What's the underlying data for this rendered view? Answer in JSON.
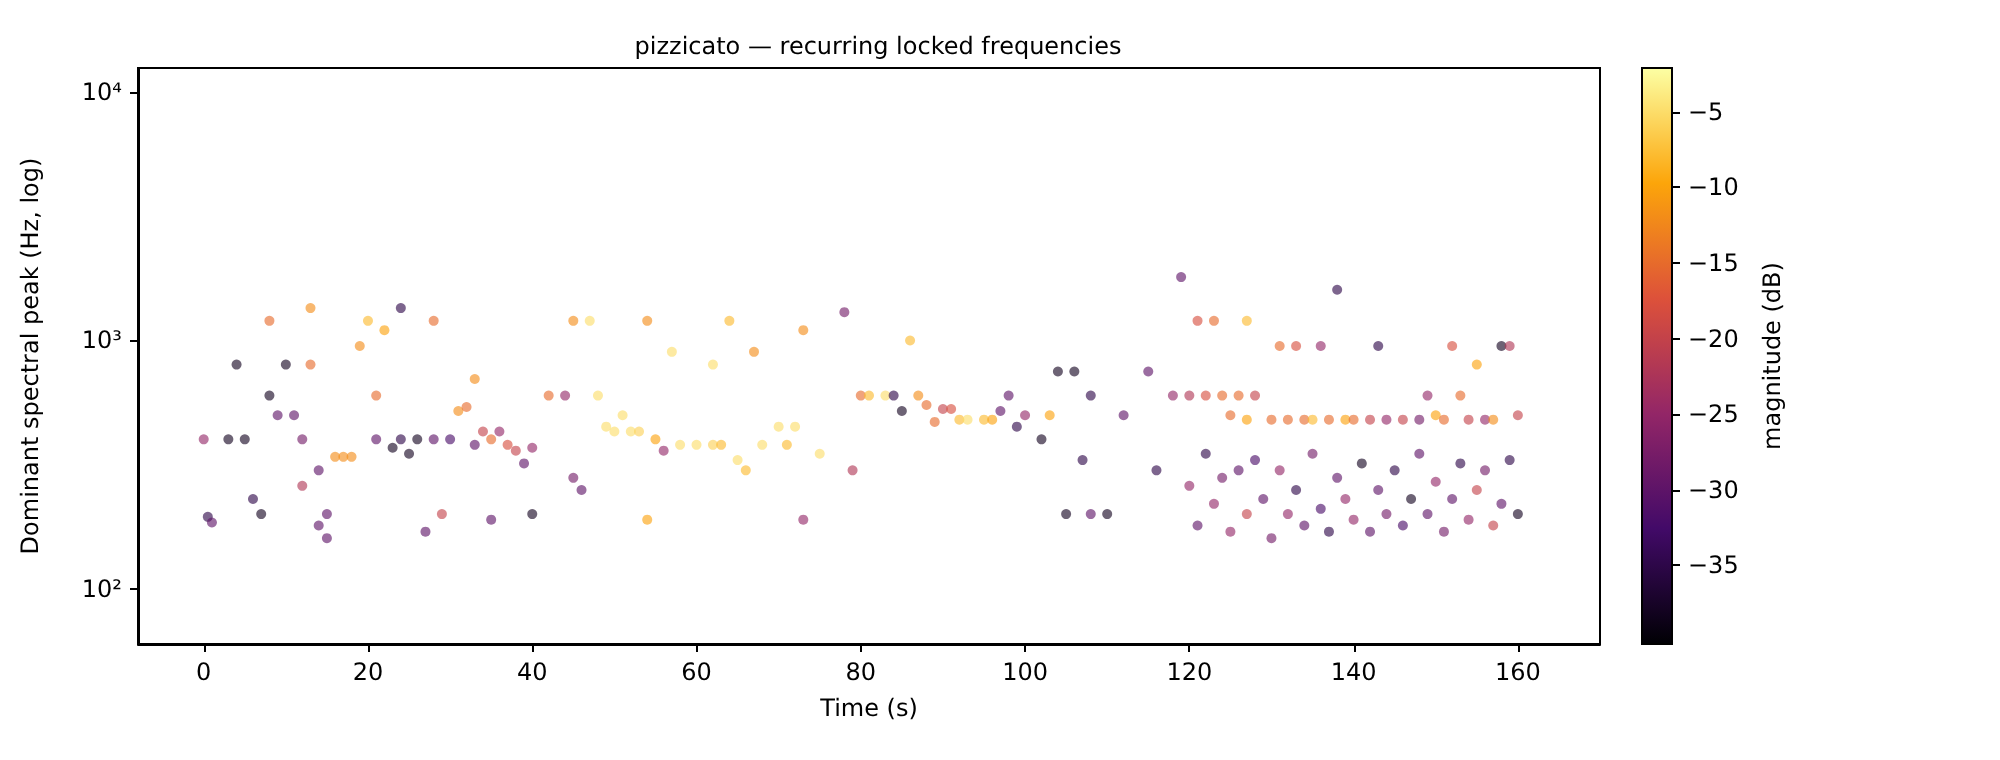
{
  "chart_data": {
    "type": "scatter",
    "title": "pizzicato — recurring locked frequencies",
    "xlabel": "Time (s)",
    "ylabel": "Dominant spectral peak (Hz, log)",
    "clabel": "magnitude (dB)",
    "xlim": [
      -8,
      170
    ],
    "xticks": [
      0,
      20,
      40,
      60,
      80,
      100,
      120,
      140,
      160
    ],
    "ylim": [
      60,
      12500
    ],
    "yticks": [
      {
        "value": 100,
        "label": "10²"
      },
      {
        "value": 1000,
        "label": "10³"
      },
      {
        "value": 10000,
        "label": "10⁴"
      }
    ],
    "log": "y",
    "marker": "circle",
    "clim": [
      -40.2,
      -2.1
    ],
    "cticks": [
      {
        "value": -35,
        "label": "−35"
      },
      {
        "value": -30,
        "label": "−30"
      },
      {
        "value": -25,
        "label": "−25"
      },
      {
        "value": -20,
        "label": "−20"
      },
      {
        "value": -15,
        "label": "−15"
      },
      {
        "value": -10,
        "label": "−10"
      },
      {
        "value": -5,
        "label": "−5"
      }
    ],
    "x": [
      0,
      0.5,
      1,
      3,
      4,
      5,
      6,
      7,
      8,
      8,
      9,
      10,
      11,
      12,
      12,
      13,
      13,
      14,
      14,
      15,
      15,
      16,
      17,
      18,
      19,
      20,
      21,
      21,
      22,
      23,
      24,
      24,
      25,
      26,
      27,
      28,
      28,
      29,
      30,
      31,
      32,
      33,
      33,
      34,
      35,
      35,
      36,
      37,
      38,
      39,
      40,
      40,
      42,
      44,
      45,
      45,
      46,
      47,
      48,
      49,
      50,
      51,
      52,
      53,
      54,
      55,
      54,
      56,
      57,
      58,
      60,
      62,
      63,
      62,
      64,
      65,
      66,
      67,
      68,
      70,
      71,
      72,
      73,
      73,
      75,
      78,
      79,
      80,
      81,
      83,
      84,
      85,
      86,
      87,
      88,
      89,
      90,
      91,
      92,
      93,
      95,
      96,
      97,
      98,
      99,
      100,
      102,
      103,
      104,
      105,
      106,
      107,
      108,
      108,
      110,
      112,
      115,
      116,
      118,
      119,
      120,
      121,
      122,
      123,
      124,
      125,
      126,
      127,
      127,
      128,
      130,
      131,
      132,
      133,
      134,
      135,
      136,
      137,
      138,
      139,
      140,
      142,
      143,
      144,
      146,
      148,
      149,
      150,
      151,
      152,
      153,
      154,
      155,
      156,
      157,
      158,
      159,
      160,
      120,
      121,
      122,
      123,
      124,
      125,
      126,
      127,
      128,
      129,
      130,
      131,
      132,
      133,
      134,
      135,
      136,
      137,
      138,
      139,
      140,
      141,
      142,
      143,
      144,
      145,
      146,
      147,
      148,
      149,
      150,
      151,
      152,
      153,
      154,
      155,
      156,
      157,
      158,
      159,
      160
    ],
    "values": [
      400,
      195,
      185,
      400,
      800,
      400,
      230,
      200,
      600,
      1200,
      500,
      800,
      500,
      400,
      260,
      800,
      1350,
      180,
      300,
      200,
      160,
      340,
      340,
      340,
      950,
      1200,
      400,
      600,
      1100,
      370,
      1350,
      400,
      350,
      400,
      170,
      1200,
      400,
      200,
      400,
      520,
      540,
      700,
      380,
      430,
      400,
      190,
      430,
      380,
      360,
      320,
      370,
      200,
      600,
      600,
      1200,
      280,
      250,
      1200,
      600,
      450,
      430,
      500,
      430,
      430,
      1200,
      400,
      190,
      360,
      900,
      380,
      380,
      380,
      380,
      800,
      1200,
      330,
      300,
      900,
      380,
      450,
      380,
      450,
      1100,
      190,
      350,
      1300,
      300,
      600,
      600,
      600,
      600,
      520,
      1000,
      600,
      550,
      470,
      530,
      530,
      480,
      480,
      480,
      480,
      520,
      600,
      450,
      500,
      400,
      500,
      750,
      200,
      750,
      330,
      600,
      200,
      200,
      500,
      750,
      300,
      600,
      1800,
      600,
      1200,
      600,
      1200,
      600,
      500,
      600,
      1200,
      480,
      600,
      480,
      950,
      480,
      950,
      480,
      480,
      950,
      480,
      1600,
      480,
      480,
      480,
      950,
      480,
      480,
      480,
      600,
      500,
      480,
      950,
      600,
      480,
      800,
      480,
      480,
      950,
      950,
      500,
      260,
      180,
      350,
      220,
      280,
      170,
      300,
      200,
      330,
      230,
      160,
      300,
      200,
      250,
      180,
      350,
      210,
      170,
      280,
      230,
      190,
      320,
      170,
      250,
      200,
      300,
      180,
      230,
      350,
      200,
      270,
      170,
      230,
      320,
      190,
      250,
      300,
      180,
      220,
      330,
      200
    ],
    "cvalues": [
      -25,
      -35,
      -30,
      -38,
      -38,
      -38,
      -35,
      -38,
      -38,
      -15,
      -30,
      -38,
      -30,
      -28,
      -22,
      -15,
      -12,
      -30,
      -30,
      -30,
      -30,
      -12,
      -12,
      -12,
      -12,
      -8,
      -30,
      -15,
      -10,
      -38,
      -35,
      -35,
      -38,
      -38,
      -30,
      -15,
      -30,
      -20,
      -32,
      -12,
      -15,
      -12,
      -30,
      -20,
      -15,
      -30,
      -25,
      -18,
      -20,
      -30,
      -25,
      -38,
      -15,
      -25,
      -12,
      -28,
      -30,
      -5,
      -5,
      -5,
      -5,
      -5,
      -5,
      -6,
      -12,
      -10,
      -10,
      -25,
      -5,
      -5,
      -5,
      -6,
      -8,
      -5,
      -8,
      -5,
      -8,
      -12,
      -5,
      -5,
      -8,
      -5,
      -12,
      -25,
      -5,
      -28,
      -22,
      -15,
      -8,
      -5,
      -35,
      -38,
      -8,
      -12,
      -15,
      -15,
      -20,
      -18,
      -8,
      -5,
      -8,
      -10,
      -30,
      -30,
      -35,
      -25,
      -38,
      -10,
      -38,
      -38,
      -38,
      -35,
      -35,
      -30,
      -38,
      -30,
      -30,
      -35,
      -25,
      -30,
      -22,
      -18,
      -18,
      -15,
      -15,
      -15,
      -15,
      -8,
      -10,
      -20,
      -15,
      -15,
      -15,
      -18,
      -15,
      -8,
      -25,
      -15,
      -35,
      -10,
      -15,
      -20,
      -35,
      -25,
      -20,
      -28,
      -25,
      -10,
      -15,
      -18,
      -15,
      -20,
      -10,
      -25,
      -12,
      -38,
      -22,
      -20,
      -25,
      -30,
      -35,
      -25,
      -28,
      -25,
      -30,
      -20,
      -32,
      -30,
      -28,
      -25,
      -25,
      -35,
      -30,
      -28,
      -32,
      -35,
      -30,
      -25,
      -25,
      -38,
      -30,
      -30,
      -28,
      -35,
      -32,
      -38,
      -30,
      -30,
      -25,
      -28,
      -30,
      -35,
      -25,
      -20,
      -28,
      -20,
      -30,
      -35,
      -38
    ]
  }
}
